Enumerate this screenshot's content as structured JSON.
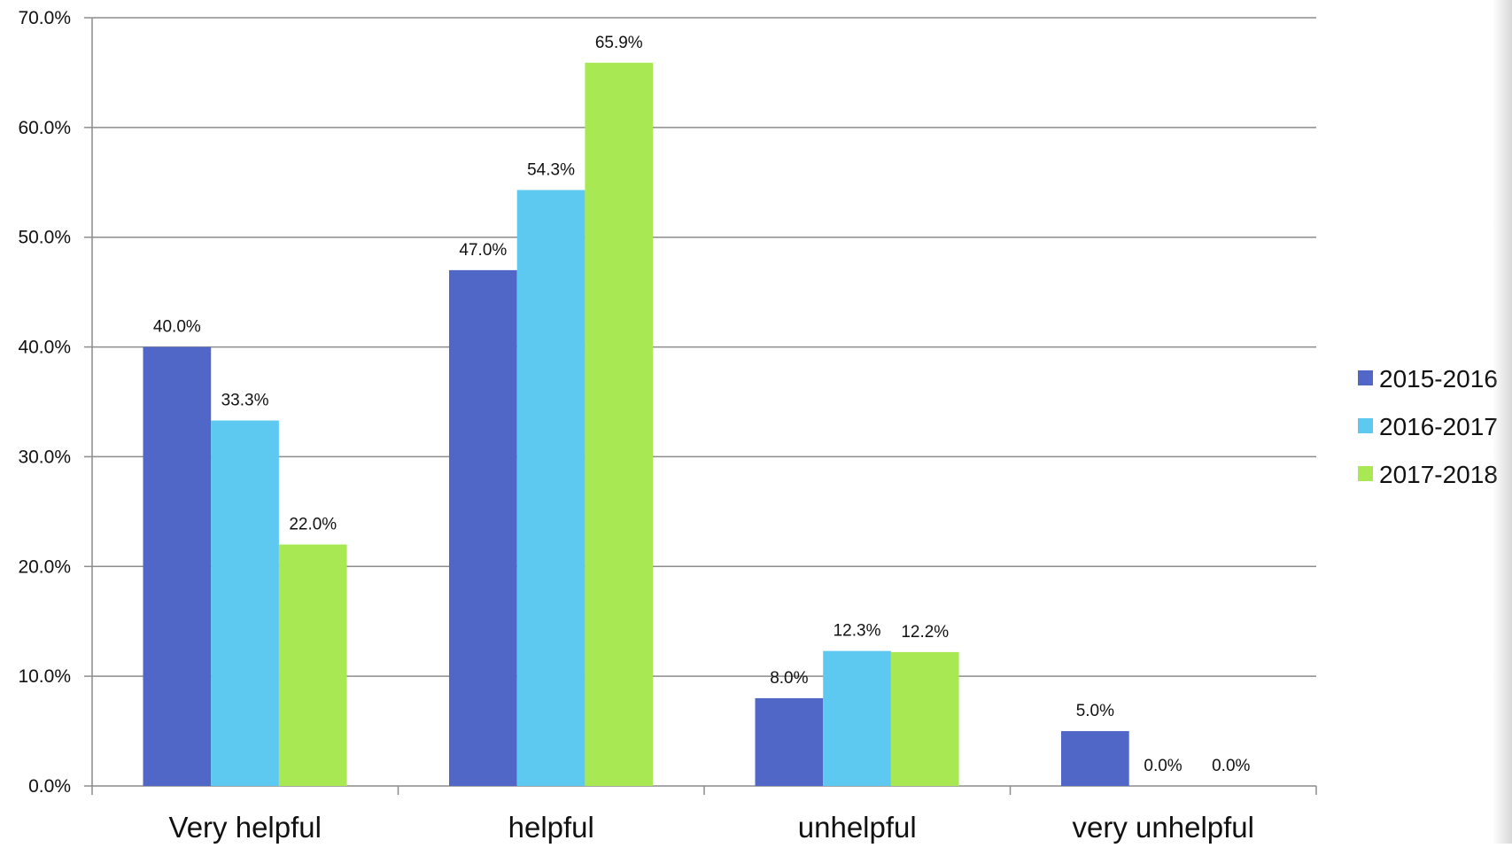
{
  "chart_data": {
    "type": "bar",
    "categories": [
      "Very helpful",
      "helpful",
      "unhelpful",
      "very unhelpful"
    ],
    "series": [
      {
        "name": "2015-2016",
        "values": [
          40.0,
          47.0,
          8.0,
          5.0
        ],
        "labels": [
          "40.0%",
          "47.0%",
          "8.0%",
          "5.0%"
        ],
        "color": "#5067c8"
      },
      {
        "name": "2016-2017",
        "values": [
          33.3,
          54.3,
          12.3,
          0.0
        ],
        "labels": [
          "33.3%",
          "54.3%",
          "12.3%",
          "0.0%"
        ],
        "color": "#5dc9f1"
      },
      {
        "name": "2017-2018",
        "values": [
          22.0,
          65.9,
          12.2,
          0.0
        ],
        "labels": [
          "22.0%",
          "65.9%",
          "12.2%",
          "0.0%"
        ],
        "color": "#a8e852"
      }
    ],
    "y_ticks": [
      "0.0%",
      "10.0%",
      "20.0%",
      "30.0%",
      "40.0%",
      "50.0%",
      "60.0%",
      "70.0%"
    ],
    "ylim": [
      0,
      70
    ],
    "title": "",
    "xlabel": "",
    "ylabel": "",
    "grid": true,
    "legend_position": "right"
  }
}
